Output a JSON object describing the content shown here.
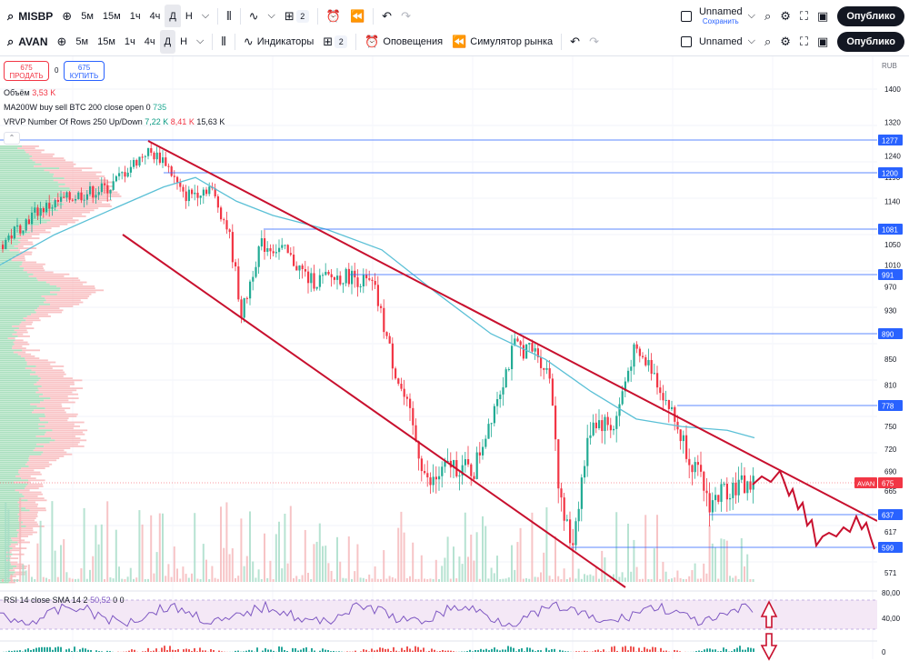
{
  "toolbar1": {
    "symbol": "MISBP",
    "intervals": [
      "5м",
      "15м",
      "1ч",
      "4ч",
      "Д",
      "Н"
    ],
    "active_interval": "Д",
    "layouts_count": "2",
    "layout_name": "Unnamed",
    "save_label": "Сохранить",
    "publish": "Опублико"
  },
  "toolbar2": {
    "symbol": "AVAN",
    "intervals": [
      "5м",
      "15м",
      "1ч",
      "4ч",
      "Д",
      "Н"
    ],
    "active_interval": "Д",
    "indicators": "Индикаторы",
    "layouts_count": "2",
    "alerts": "Оповещения",
    "simulator": "Симулятор рынка",
    "layout_name": "Unnamed",
    "publish": "Опублико"
  },
  "trade": {
    "sell_price": "675",
    "sell_label": "ПРОДАТЬ",
    "spread": "0",
    "buy_price": "675",
    "buy_label": "КУПИТЬ"
  },
  "legend": {
    "volume_label": "Объём",
    "volume_value": "3,53 K",
    "ma_label": "MA200W buy sell BTC 200 close open 0",
    "ma_value": "735",
    "vrvp_label": "VRVP Number Of Rows 250 Up/Down",
    "vrvp_up": "7,22 K",
    "vrvp_down": "8,41 K",
    "vrvp_total": "15,63 K"
  },
  "rsi": {
    "label": "RSI 14 close SMA 14 2",
    "value": "50,52",
    "v2": "0",
    "v3": "0"
  },
  "axis": {
    "currency": "RUB",
    "ticks": [
      "1400",
      "1320",
      "1240",
      "1190",
      "1140",
      "1081",
      "1050",
      "1010",
      "970",
      "930",
      "890",
      "850",
      "810",
      "778",
      "750",
      "720",
      "690",
      "665",
      "637",
      "617",
      "599",
      "571"
    ],
    "rsi_ticks": [
      "80,00",
      "40,00",
      "0"
    ]
  },
  "levels": [
    {
      "price": "1277",
      "color": "#2962ff"
    },
    {
      "price": "1200",
      "color": "#2962ff"
    },
    {
      "price": "1081",
      "color": "#2962ff"
    },
    {
      "price": "991",
      "color": "#2962ff"
    },
    {
      "price": "890",
      "color": "#2962ff"
    },
    {
      "price": "778",
      "color": "#2962ff"
    },
    {
      "price": "637",
      "color": "#2962ff"
    },
    {
      "price": "599",
      "color": "#2962ff"
    }
  ],
  "last_price": {
    "symbol": "AVAN",
    "price": "675",
    "color": "#f23645"
  },
  "colors": {
    "up": "#22ab94",
    "down": "#f23645",
    "channel": "#c8102e",
    "ma": "#5bc0d6",
    "level": "#2962ff"
  },
  "icons": [
    "search-icon",
    "plus-icon",
    "candles-icon",
    "indicators-icon",
    "layout-icon",
    "alert-icon",
    "replay-icon",
    "undo-icon",
    "redo-icon",
    "settings-icon",
    "fullscreen-icon",
    "camera-icon"
  ]
}
